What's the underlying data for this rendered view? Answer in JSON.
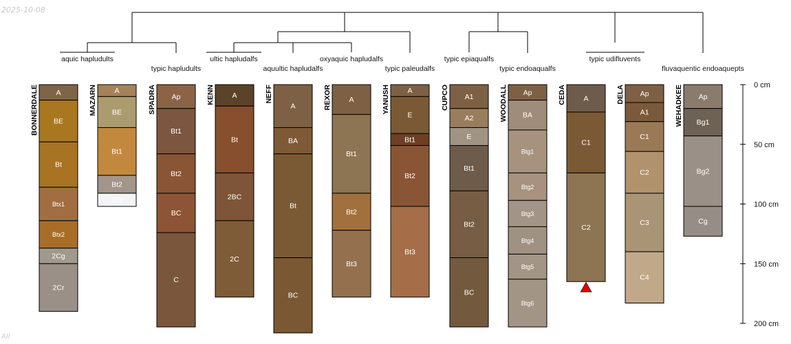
{
  "date": "2025-10-08",
  "corner_label": "All",
  "depth_axis": {
    "ticks": [
      {
        "depth": 0,
        "label": "0 cm"
      },
      {
        "depth": 50,
        "label": "50 cm"
      },
      {
        "depth": 100,
        "label": "100 cm"
      },
      {
        "depth": 150,
        "label": "150 cm"
      },
      {
        "depth": 200,
        "label": "200 cm"
      }
    ]
  },
  "taxonomy_labels": [
    "aquic hapludults",
    "typic hapludults",
    "ultic hapludalfs",
    "aquultic hapludalfs",
    "oxyaquic hapludalfs",
    "typic paleudalfs",
    "typic epiaqualfs",
    "typic endoaqualfs",
    "typic udifluvents",
    "fluvaquentic endoaquepts"
  ],
  "profiles": [
    {
      "name": "BONNERDALE",
      "horizons": [
        {
          "label": "A",
          "top": 0,
          "bottom": 13,
          "color": "#7e6548"
        },
        {
          "label": "BE",
          "top": 13,
          "bottom": 48,
          "color": "#a8771f"
        },
        {
          "label": "Bt",
          "top": 48,
          "bottom": 86,
          "color": "#a87322"
        },
        {
          "label": "Btx1",
          "top": 86,
          "bottom": 114,
          "color": "#a26e41"
        },
        {
          "label": "Btx2",
          "top": 114,
          "bottom": 137,
          "color": "#a86e28"
        },
        {
          "label": "2Cg",
          "top": 137,
          "bottom": 150,
          "color": "#a09a8c"
        },
        {
          "label": "2Cr",
          "top": 150,
          "bottom": 190,
          "color": "#9a9087"
        }
      ]
    },
    {
      "name": "MAZARN",
      "horizons": [
        {
          "label": "A",
          "top": 0,
          "bottom": 10,
          "color": "#a5825a"
        },
        {
          "label": "BE",
          "top": 10,
          "bottom": 36,
          "color": "#ad9b70"
        },
        {
          "label": "Bt1",
          "top": 36,
          "bottom": 76,
          "color": "#c2893e"
        },
        {
          "label": "Bt2",
          "top": 76,
          "bottom": 91,
          "color": "#a2958a"
        },
        {
          "label": "2Cr",
          "top": 91,
          "bottom": 102,
          "color": "#f4f4f6"
        }
      ]
    },
    {
      "name": "SPADRA",
      "horizons": [
        {
          "label": "Ap",
          "top": 0,
          "bottom": 20,
          "color": "#8d6346"
        },
        {
          "label": "Bt1",
          "top": 20,
          "bottom": 58,
          "color": "#7d5640"
        },
        {
          "label": "Bt2",
          "top": 58,
          "bottom": 91,
          "color": "#8a5535"
        },
        {
          "label": "BC",
          "top": 91,
          "bottom": 124,
          "color": "#8d5535"
        },
        {
          "label": "C",
          "top": 124,
          "bottom": 203,
          "color": "#7a573c"
        }
      ]
    },
    {
      "name": "KENN",
      "horizons": [
        {
          "label": "A",
          "top": 0,
          "bottom": 18,
          "color": "#5a4328"
        },
        {
          "label": "Bt",
          "top": 18,
          "bottom": 74,
          "color": "#874f2e"
        },
        {
          "label": "2BC",
          "top": 74,
          "bottom": 114,
          "color": "#7e5538"
        },
        {
          "label": "2C",
          "top": 114,
          "bottom": 178,
          "color": "#7e5c37"
        }
      ]
    },
    {
      "name": "NEFF",
      "horizons": [
        {
          "label": "A",
          "top": 0,
          "bottom": 36,
          "color": "#7e6044"
        },
        {
          "label": "BA",
          "top": 36,
          "bottom": 58,
          "color": "#7e5a37"
        },
        {
          "label": "Bt",
          "top": 58,
          "bottom": 145,
          "color": "#7a5a35"
        },
        {
          "label": "BC",
          "top": 145,
          "bottom": 208,
          "color": "#7a5834"
        }
      ]
    },
    {
      "name": "REXOR",
      "horizons": [
        {
          "label": "A",
          "top": 0,
          "bottom": 25,
          "color": "#7e6044"
        },
        {
          "label": "Bt1",
          "top": 25,
          "bottom": 91,
          "color": "#8d7452"
        },
        {
          "label": "Bt2",
          "top": 91,
          "bottom": 122,
          "color": "#a2703c"
        },
        {
          "label": "Bt3",
          "top": 122,
          "bottom": 178,
          "color": "#94704f"
        }
      ]
    },
    {
      "name": "YANUSH",
      "horizons": [
        {
          "label": "A",
          "top": 0,
          "bottom": 10,
          "color": "#7e6044"
        },
        {
          "label": "E",
          "top": 10,
          "bottom": 41,
          "color": "#7a5a35"
        },
        {
          "label": "Bt1",
          "top": 41,
          "bottom": 51,
          "color": "#6e3f24"
        },
        {
          "label": "Bt2",
          "top": 51,
          "bottom": 102,
          "color": "#8a5535"
        },
        {
          "label": "Bt3",
          "top": 102,
          "bottom": 178,
          "color": "#a56e48"
        }
      ]
    },
    {
      "name": "CUPCO",
      "horizons": [
        {
          "label": "A1",
          "top": 0,
          "bottom": 20,
          "color": "#7e6044"
        },
        {
          "label": "A2",
          "top": 20,
          "bottom": 36,
          "color": "#9a7d5d"
        },
        {
          "label": "E",
          "top": 36,
          "bottom": 51,
          "color": "#a09585"
        },
        {
          "label": "Bt1",
          "top": 51,
          "bottom": 89,
          "color": "#6e5c4a"
        },
        {
          "label": "Bt2",
          "top": 89,
          "bottom": 145,
          "color": "#765d44"
        },
        {
          "label": "BC",
          "top": 145,
          "bottom": 203,
          "color": "#735a3f"
        }
      ]
    },
    {
      "name": "WOODALL",
      "horizons": [
        {
          "label": "Ap",
          "top": 0,
          "bottom": 13,
          "color": "#7e6044"
        },
        {
          "label": "BA",
          "top": 13,
          "bottom": 38,
          "color": "#a08c7a"
        },
        {
          "label": "Btg1",
          "top": 38,
          "bottom": 74,
          "color": "#a6927e"
        },
        {
          "label": "Btg2",
          "top": 74,
          "bottom": 97,
          "color": "#a6927e"
        },
        {
          "label": "Btg3",
          "top": 97,
          "bottom": 119,
          "color": "#a29486"
        },
        {
          "label": "Btg4",
          "top": 119,
          "bottom": 142,
          "color": "#9f9283"
        },
        {
          "label": "Btg5",
          "top": 142,
          "bottom": 163,
          "color": "#a29585"
        },
        {
          "label": "Btg6",
          "top": 163,
          "bottom": 203,
          "color": "#a39586"
        }
      ]
    },
    {
      "name": "CEDA",
      "horizons": [
        {
          "label": "A",
          "top": 0,
          "bottom": 23,
          "color": "#6e5c4a"
        },
        {
          "label": "C1",
          "top": 23,
          "bottom": 74,
          "color": "#7a5a35"
        },
        {
          "label": "C2",
          "top": 74,
          "bottom": 165,
          "color": "#8d7452"
        }
      ],
      "truncated": true
    },
    {
      "name": "DELA",
      "horizons": [
        {
          "label": "Ap",
          "top": 0,
          "bottom": 15,
          "color": "#7e6044"
        },
        {
          "label": "A1",
          "top": 15,
          "bottom": 31,
          "color": "#7a5a3a"
        },
        {
          "label": "C1",
          "top": 31,
          "bottom": 56,
          "color": "#9a7a56"
        },
        {
          "label": "C2",
          "top": 56,
          "bottom": 91,
          "color": "#b0926d"
        },
        {
          "label": "C3",
          "top": 91,
          "bottom": 140,
          "color": "#aa9476"
        },
        {
          "label": "C4",
          "top": 140,
          "bottom": 183,
          "color": "#c1a888"
        }
      ]
    },
    {
      "name": "WEHADKEE",
      "horizons": [
        {
          "label": "Ap",
          "top": 0,
          "bottom": 20,
          "color": "#8a7b6d"
        },
        {
          "label": "Bg1",
          "top": 20,
          "bottom": 43,
          "color": "#6e6255"
        },
        {
          "label": "Bg2",
          "top": 43,
          "bottom": 102,
          "color": "#9a9087"
        },
        {
          "label": "Cg",
          "top": 102,
          "bottom": 127,
          "color": "#968e86"
        }
      ]
    }
  ],
  "colors": {
    "horizon_border": "#000000",
    "horizon_label": "#ffffff",
    "truncation_marker": "#e00000",
    "tree_line": "#000000"
  }
}
